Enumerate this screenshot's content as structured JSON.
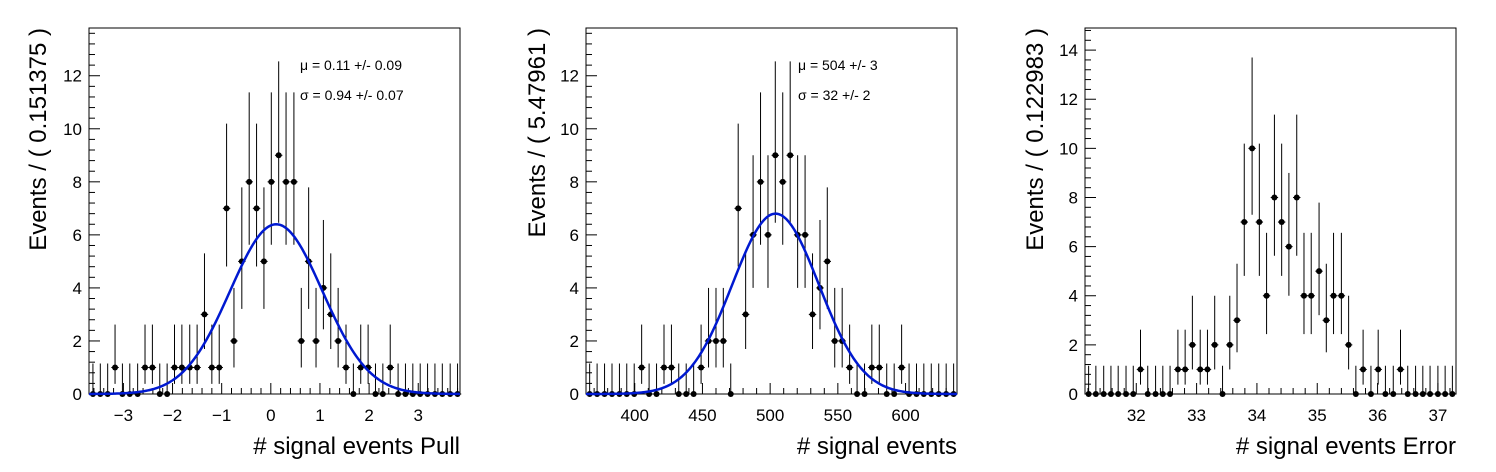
{
  "chart_data": [
    {
      "type": "scatter",
      "xlabel": "# signal events Pull",
      "ylabel": "Events / ( 0.151375 )",
      "xlim": [
        -3.7,
        3.85
      ],
      "ylim": [
        0,
        13.8
      ],
      "xticks": [
        -3,
        -2,
        -1,
        0,
        1,
        2,
        3
      ],
      "yticks": [
        0,
        2,
        4,
        6,
        8,
        10,
        12
      ],
      "bin_width": 0.151375,
      "series": [
        {
          "kind": "points",
          "x": [
            -3.62,
            -3.47,
            -3.32,
            -3.17,
            -3.02,
            -2.87,
            -2.71,
            -2.56,
            -2.41,
            -2.26,
            -2.11,
            -1.96,
            -1.81,
            -1.65,
            -1.5,
            -1.35,
            -1.2,
            -1.05,
            -0.9,
            -0.75,
            -0.59,
            -0.44,
            -0.29,
            -0.14,
            0.01,
            0.16,
            0.31,
            0.47,
            0.62,
            0.77,
            0.92,
            1.07,
            1.22,
            1.37,
            1.53,
            1.68,
            1.83,
            1.98,
            2.13,
            2.28,
            2.43,
            2.59,
            2.74,
            2.89,
            3.04,
            3.19,
            3.34,
            3.49,
            3.65,
            3.8
          ],
          "y": [
            0,
            0,
            0,
            1,
            0,
            0,
            0,
            1,
            1,
            0,
            0,
            1,
            1,
            1,
            1,
            3,
            1,
            1,
            7,
            2,
            5,
            8,
            7,
            5,
            8,
            9,
            8,
            8,
            2,
            5,
            2,
            4,
            3,
            2,
            1,
            0,
            1,
            1,
            0,
            0,
            1,
            0,
            0,
            0,
            0,
            0,
            0,
            0,
            0,
            0
          ]
        },
        {
          "kind": "gaussian",
          "amplitude": 6.4,
          "mean": 0.11,
          "sigma": 0.94
        }
      ],
      "annotations": [
        {
          "mu": "μ =  0.11 +/- 0.09"
        },
        {
          "sigma": "σ =  0.94 +/- 0.07"
        }
      ]
    },
    {
      "type": "scatter",
      "xlabel": "# signal events",
      "ylabel": "Events / ( 5.47961 )",
      "xlim": [
        364,
        638
      ],
      "ylim": [
        0,
        13.8
      ],
      "xticks": [
        400,
        450,
        500,
        550,
        600
      ],
      "yticks": [
        0,
        2,
        4,
        6,
        8,
        10,
        12
      ],
      "bin_width": 5.47961,
      "series": [
        {
          "kind": "points",
          "x": [
            366.7,
            372.2,
            377.7,
            383.2,
            388.7,
            394.1,
            399.6,
            405.1,
            410.6,
            416.1,
            421.6,
            427.1,
            432.5,
            438.0,
            443.5,
            449.0,
            454.5,
            460.0,
            465.4,
            470.9,
            476.4,
            481.9,
            487.4,
            492.9,
            498.4,
            503.8,
            509.3,
            514.8,
            520.3,
            525.8,
            531.3,
            536.8,
            542.2,
            547.7,
            553.2,
            558.7,
            564.2,
            569.7,
            575.1,
            580.6,
            586.1,
            591.6,
            597.1,
            602.6,
            608.1,
            613.5,
            619.0,
            624.5,
            630.0,
            635.5
          ],
          "y": [
            0,
            0,
            0,
            0,
            0,
            0,
            0,
            1,
            0,
            0,
            1,
            1,
            0,
            0,
            0,
            1,
            2,
            2,
            2,
            0,
            7,
            3,
            6,
            8,
            6,
            9,
            8,
            9,
            6,
            6,
            3,
            4,
            5,
            2,
            2,
            1,
            0,
            0,
            1,
            1,
            0,
            0,
            1,
            0,
            0,
            0,
            0,
            0,
            0,
            0
          ]
        },
        {
          "kind": "gaussian",
          "amplitude": 6.8,
          "mean": 504,
          "sigma": 32
        }
      ],
      "annotations": [
        {
          "mu": "μ =  504 +/- 3"
        },
        {
          "sigma": "σ =  32 +/- 2"
        }
      ]
    },
    {
      "type": "scatter",
      "xlabel": "# signal events Error",
      "ylabel": "Events / ( 0.122983 )",
      "xlim": [
        31.15,
        37.3
      ],
      "ylim": [
        0,
        14.9
      ],
      "xticks": [
        32,
        33,
        34,
        35,
        36,
        37
      ],
      "yticks": [
        0,
        2,
        4,
        6,
        8,
        10,
        12,
        14
      ],
      "bin_width": 0.122983,
      "series": [
        {
          "kind": "points",
          "x": [
            31.21,
            31.33,
            31.46,
            31.58,
            31.7,
            31.83,
            31.95,
            32.07,
            32.19,
            32.32,
            32.44,
            32.56,
            32.69,
            32.81,
            32.93,
            33.06,
            33.18,
            33.3,
            33.43,
            33.55,
            33.67,
            33.79,
            33.92,
            34.04,
            34.16,
            34.29,
            34.41,
            34.53,
            34.66,
            34.78,
            34.9,
            35.03,
            35.15,
            35.27,
            35.4,
            35.52,
            35.64,
            35.76,
            35.89,
            36.01,
            36.13,
            36.26,
            36.38,
            36.5,
            36.63,
            36.75,
            36.87,
            37.0,
            37.12,
            37.24
          ],
          "y": [
            0,
            0,
            0,
            0,
            0,
            0,
            0,
            1,
            0,
            0,
            0,
            0,
            1,
            1,
            2,
            1,
            1,
            2,
            0,
            2,
            3,
            7,
            10,
            7,
            4,
            8,
            7,
            6,
            8,
            4,
            4,
            5,
            3,
            4,
            4,
            2,
            0,
            1,
            0,
            1,
            0,
            0,
            1,
            0,
            0,
            0,
            0,
            0,
            0,
            0
          ]
        }
      ],
      "annotations": []
    }
  ]
}
